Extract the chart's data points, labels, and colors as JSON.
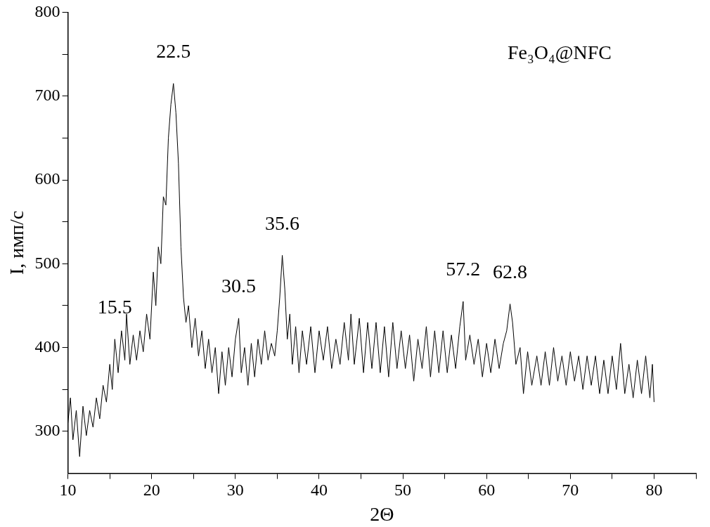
{
  "chart_data": {
    "type": "line",
    "title": "Fe₃O₄@NFC",
    "xlabel": "2Θ",
    "ylabel": "I, имп/с",
    "color": "#000000",
    "marker": "none",
    "grid": false,
    "legend": false,
    "xlim": [
      10,
      85
    ],
    "xticks": [
      10,
      {
        "value": 15,
        "label": null
      },
      20,
      {
        "value": 25,
        "label": null
      },
      30,
      {
        "value": 35,
        "label": null
      },
      40,
      {
        "value": 45,
        "label": null
      },
      50,
      {
        "value": 55,
        "label": null
      },
      60,
      {
        "value": 65,
        "label": null
      },
      70,
      {
        "value": 75,
        "label": null
      },
      80,
      {
        "value": 85,
        "label": null
      }
    ],
    "ylim": [
      250,
      800
    ],
    "yticks": [
      300,
      {
        "value": 350,
        "label": null
      },
      400,
      {
        "value": 450,
        "label": null
      },
      500,
      {
        "value": 550,
        "label": null
      },
      600,
      {
        "value": 650,
        "label": null
      },
      700,
      {
        "value": 750,
        "label": null
      },
      800
    ],
    "x": [
      10,
      10.3,
      10.6,
      11,
      11.4,
      11.8,
      12.2,
      12.6,
      13,
      13.4,
      13.8,
      14.2,
      14.6,
      15,
      15.3,
      15.6,
      16,
      16.4,
      16.8,
      17,
      17.4,
      17.8,
      18.2,
      18.6,
      19,
      19.4,
      19.8,
      20.2,
      20.5,
      20.8,
      21.1,
      21.4,
      21.7,
      22,
      22.3,
      22.6,
      22.9,
      23.2,
      23.5,
      23.8,
      24.1,
      24.4,
      24.8,
      25.2,
      25.6,
      26,
      26.4,
      26.8,
      27.2,
      27.6,
      28,
      28.4,
      28.8,
      29.2,
      29.6,
      30,
      30.4,
      30.7,
      31.1,
      31.5,
      31.9,
      32.3,
      32.7,
      33.1,
      33.5,
      33.9,
      34.3,
      34.7,
      35,
      35.3,
      35.6,
      35.9,
      36.2,
      36.5,
      36.8,
      37.2,
      37.6,
      38,
      38.5,
      39,
      39.5,
      40,
      40.5,
      41,
      41.5,
      42,
      42.5,
      43,
      43.5,
      43.8,
      44.2,
      44.8,
      45.3,
      45.8,
      46.3,
      46.8,
      47.3,
      47.8,
      48.3,
      48.8,
      49.3,
      49.8,
      50.3,
      50.8,
      51.3,
      51.8,
      52.3,
      52.8,
      53.3,
      53.8,
      54.3,
      54.8,
      55.3,
      55.8,
      56.3,
      56.8,
      57.2,
      57.5,
      58,
      58.5,
      59,
      59.5,
      60,
      60.5,
      61,
      61.5,
      62,
      62.4,
      62.8,
      63.1,
      63.5,
      64,
      64.4,
      64.9,
      65.4,
      66,
      66.5,
      67,
      67.5,
      68,
      68.5,
      69,
      69.5,
      70,
      70.5,
      71,
      71.5,
      72,
      72.5,
      73,
      73.5,
      74,
      74.5,
      75,
      75.5,
      76,
      76.5,
      77,
      77.5,
      78,
      78.5,
      79,
      79.5,
      79.8,
      80
    ],
    "values": [
      310,
      340,
      290,
      325,
      270,
      330,
      295,
      325,
      305,
      340,
      315,
      355,
      335,
      380,
      350,
      410,
      370,
      420,
      385,
      440,
      380,
      415,
      385,
      420,
      395,
      440,
      410,
      490,
      450,
      520,
      500,
      580,
      570,
      650,
      690,
      715,
      680,
      620,
      520,
      460,
      430,
      450,
      400,
      435,
      390,
      420,
      375,
      410,
      370,
      400,
      345,
      395,
      355,
      400,
      365,
      410,
      435,
      370,
      400,
      355,
      405,
      365,
      410,
      380,
      420,
      385,
      405,
      390,
      420,
      460,
      510,
      470,
      410,
      440,
      380,
      425,
      370,
      420,
      380,
      425,
      370,
      420,
      385,
      425,
      375,
      410,
      380,
      430,
      385,
      440,
      380,
      435,
      370,
      430,
      375,
      430,
      370,
      425,
      365,
      430,
      375,
      420,
      375,
      415,
      360,
      410,
      375,
      425,
      365,
      420,
      370,
      420,
      370,
      415,
      375,
      425,
      455,
      385,
      415,
      380,
      410,
      365,
      405,
      370,
      410,
      375,
      405,
      420,
      452,
      430,
      380,
      400,
      345,
      395,
      355,
      390,
      355,
      395,
      355,
      400,
      360,
      390,
      355,
      395,
      360,
      390,
      350,
      390,
      355,
      390,
      345,
      385,
      345,
      390,
      350,
      405,
      345,
      380,
      340,
      385,
      345,
      390,
      340,
      380,
      335
    ],
    "annotations": [
      {
        "text": "15.5",
        "x": 15.6,
        "y": 410
      },
      {
        "text": "22.5",
        "x": 22.6,
        "y": 715
      },
      {
        "text": "30.5",
        "x": 30.4,
        "y": 435
      },
      {
        "text": "35.6",
        "x": 35.6,
        "y": 510
      },
      {
        "text": "57.2",
        "x": 57.2,
        "y": 455
      },
      {
        "text": "62.8",
        "x": 62.8,
        "y": 452
      }
    ]
  }
}
